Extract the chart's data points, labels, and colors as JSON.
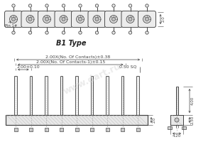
{
  "bg_color": "#ffffff",
  "line_color": "#444444",
  "title": "B1 Type",
  "title_fontsize": 7,
  "dim_fontsize": 4.5,
  "label_fontsize": 4,
  "n_pins": 9,
  "dim_texts": [
    "2.00X(No. Of Contacts)±0.38",
    "2.00X(No. Of Contacts-1)±0.15",
    "2.00±0.10",
    "0.50 SQ"
  ],
  "side_dims": [
    "4.00",
    "2.50",
    "4.20"
  ],
  "body_dim": "2.0",
  "pin1_label": "Pin 1#"
}
